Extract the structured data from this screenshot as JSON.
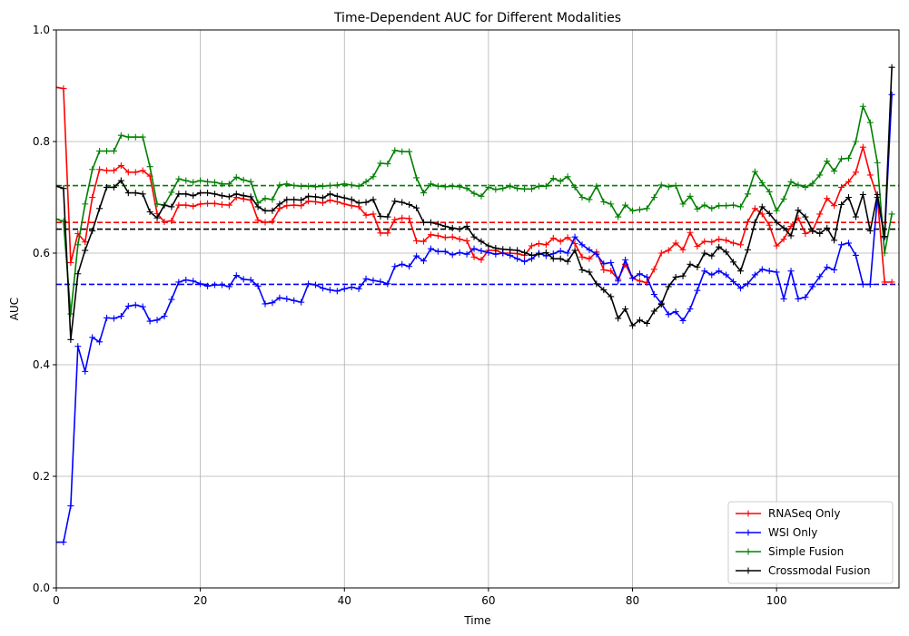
{
  "chart_data": {
    "type": "line",
    "title": "Time-Dependent AUC for Different Modalities",
    "xlabel": "Time",
    "ylabel": "AUC",
    "xlim": [
      0,
      117
    ],
    "ylim": [
      0,
      1.0
    ],
    "x_ticks": [
      0,
      20,
      40,
      60,
      80,
      100
    ],
    "y_ticks": [
      0,
      0.2,
      0.4,
      0.6,
      0.8,
      1.0
    ],
    "x_tick_labels": [
      "0",
      "20",
      "40",
      "60",
      "80",
      "100"
    ],
    "y_tick_labels": [
      "0.0",
      "0.2",
      "0.4",
      "0.6",
      "0.8",
      "1.0"
    ],
    "grid": true,
    "legend_position": "bottom-right",
    "series": [
      {
        "name": "RNASeq Only",
        "color": "#ff0000",
        "mean": 0.655,
        "y": [
          0.897,
          0.895,
          0.583,
          0.635,
          0.62,
          0.7,
          0.75,
          0.748,
          0.748,
          0.757,
          0.745,
          0.745,
          0.748,
          0.738,
          0.671,
          0.656,
          0.658,
          0.686,
          0.686,
          0.684,
          0.688,
          0.689,
          0.689,
          0.687,
          0.686,
          0.7,
          0.697,
          0.695,
          0.659,
          0.655,
          0.657,
          0.68,
          0.685,
          0.686,
          0.685,
          0.693,
          0.692,
          0.69,
          0.695,
          0.692,
          0.688,
          0.685,
          0.683,
          0.668,
          0.67,
          0.636,
          0.636,
          0.66,
          0.663,
          0.662,
          0.622,
          0.621,
          0.633,
          0.631,
          0.628,
          0.629,
          0.625,
          0.622,
          0.593,
          0.588,
          0.605,
          0.605,
          0.6,
          0.6,
          0.599,
          0.596,
          0.613,
          0.617,
          0.615,
          0.627,
          0.621,
          0.628,
          0.617,
          0.593,
          0.59,
          0.602,
          0.57,
          0.568,
          0.553,
          0.58,
          0.555,
          0.55,
          0.547,
          0.571,
          0.6,
          0.605,
          0.618,
          0.606,
          0.637,
          0.612,
          0.621,
          0.62,
          0.625,
          0.623,
          0.618,
          0.615,
          0.656,
          0.68,
          0.67,
          0.65,
          0.613,
          0.625,
          0.648,
          0.663,
          0.635,
          0.64,
          0.67,
          0.698,
          0.685,
          0.718,
          0.728,
          0.745,
          0.79,
          0.74,
          0.7,
          0.548,
          0.548
        ]
      },
      {
        "name": "WSI Only",
        "color": "#0000ff",
        "mean": 0.544,
        "y": [
          0.082,
          0.082,
          0.147,
          0.433,
          0.388,
          0.449,
          0.441,
          0.484,
          0.483,
          0.487,
          0.505,
          0.507,
          0.504,
          0.478,
          0.48,
          0.487,
          0.517,
          0.548,
          0.552,
          0.55,
          0.545,
          0.541,
          0.543,
          0.543,
          0.54,
          0.56,
          0.553,
          0.552,
          0.541,
          0.509,
          0.511,
          0.52,
          0.518,
          0.515,
          0.512,
          0.545,
          0.543,
          0.537,
          0.534,
          0.532,
          0.536,
          0.539,
          0.536,
          0.554,
          0.551,
          0.549,
          0.545,
          0.576,
          0.58,
          0.576,
          0.595,
          0.586,
          0.608,
          0.603,
          0.603,
          0.597,
          0.601,
          0.598,
          0.608,
          0.604,
          0.601,
          0.598,
          0.6,
          0.596,
          0.59,
          0.585,
          0.59,
          0.6,
          0.595,
          0.599,
          0.604,
          0.6,
          0.629,
          0.615,
          0.606,
          0.598,
          0.581,
          0.583,
          0.55,
          0.588,
          0.555,
          0.563,
          0.557,
          0.526,
          0.51,
          0.49,
          0.495,
          0.479,
          0.5,
          0.533,
          0.568,
          0.561,
          0.568,
          0.561,
          0.549,
          0.537,
          0.545,
          0.561,
          0.571,
          0.568,
          0.566,
          0.518,
          0.568,
          0.518,
          0.521,
          0.54,
          0.558,
          0.575,
          0.57,
          0.615,
          0.618,
          0.596,
          0.544,
          0.544,
          0.7,
          0.628,
          0.884
        ]
      },
      {
        "name": "Simple Fusion",
        "color": "#008000",
        "mean": 0.721,
        "y": [
          0.661,
          0.657,
          0.491,
          0.615,
          0.688,
          0.75,
          0.783,
          0.783,
          0.783,
          0.811,
          0.808,
          0.808,
          0.808,
          0.755,
          0.688,
          0.686,
          0.709,
          0.733,
          0.73,
          0.727,
          0.73,
          0.728,
          0.727,
          0.724,
          0.724,
          0.736,
          0.731,
          0.728,
          0.69,
          0.698,
          0.696,
          0.722,
          0.724,
          0.721,
          0.72,
          0.72,
          0.719,
          0.72,
          0.721,
          0.722,
          0.724,
          0.722,
          0.72,
          0.728,
          0.737,
          0.761,
          0.76,
          0.784,
          0.782,
          0.782,
          0.735,
          0.708,
          0.724,
          0.72,
          0.719,
          0.72,
          0.719,
          0.716,
          0.707,
          0.702,
          0.718,
          0.714,
          0.716,
          0.72,
          0.716,
          0.715,
          0.715,
          0.72,
          0.72,
          0.734,
          0.729,
          0.737,
          0.718,
          0.7,
          0.696,
          0.72,
          0.692,
          0.688,
          0.665,
          0.686,
          0.676,
          0.678,
          0.68,
          0.7,
          0.722,
          0.719,
          0.721,
          0.688,
          0.702,
          0.679,
          0.686,
          0.68,
          0.685,
          0.685,
          0.686,
          0.683,
          0.706,
          0.746,
          0.726,
          0.71,
          0.676,
          0.697,
          0.728,
          0.722,
          0.718,
          0.725,
          0.74,
          0.765,
          0.747,
          0.769,
          0.77,
          0.8,
          0.863,
          0.834,
          0.762,
          0.6,
          0.67
        ]
      },
      {
        "name": "Crossmodal Fusion",
        "color": "#000000",
        "mean": 0.643,
        "y": [
          0.72,
          0.716,
          0.445,
          0.563,
          0.605,
          0.64,
          0.68,
          0.718,
          0.718,
          0.73,
          0.708,
          0.708,
          0.706,
          0.674,
          0.663,
          0.686,
          0.683,
          0.706,
          0.706,
          0.703,
          0.708,
          0.708,
          0.706,
          0.703,
          0.701,
          0.706,
          0.703,
          0.701,
          0.683,
          0.676,
          0.676,
          0.688,
          0.696,
          0.696,
          0.695,
          0.702,
          0.701,
          0.699,
          0.706,
          0.702,
          0.699,
          0.696,
          0.69,
          0.691,
          0.696,
          0.666,
          0.665,
          0.693,
          0.691,
          0.687,
          0.681,
          0.655,
          0.655,
          0.652,
          0.648,
          0.645,
          0.643,
          0.648,
          0.629,
          0.621,
          0.613,
          0.609,
          0.607,
          0.606,
          0.605,
          0.601,
          0.596,
          0.598,
          0.601,
          0.59,
          0.59,
          0.585,
          0.605,
          0.57,
          0.566,
          0.545,
          0.534,
          0.522,
          0.483,
          0.5,
          0.47,
          0.48,
          0.474,
          0.496,
          0.508,
          0.54,
          0.557,
          0.559,
          0.58,
          0.575,
          0.6,
          0.595,
          0.611,
          0.602,
          0.584,
          0.568,
          0.606,
          0.655,
          0.683,
          0.671,
          0.655,
          0.645,
          0.631,
          0.677,
          0.665,
          0.64,
          0.635,
          0.645,
          0.623,
          0.687,
          0.7,
          0.665,
          0.705,
          0.64,
          0.705,
          0.63,
          0.933
        ]
      }
    ]
  }
}
